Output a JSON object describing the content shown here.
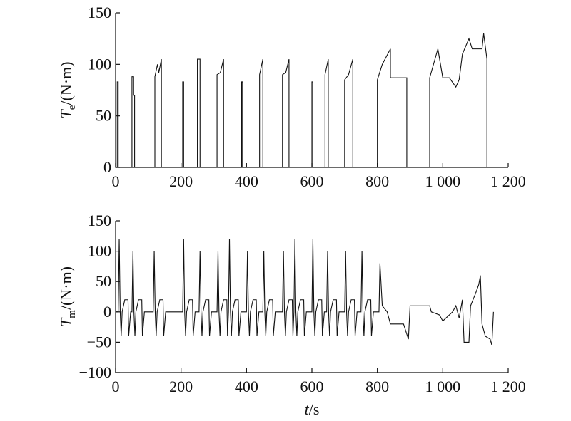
{
  "chart_data": [
    {
      "type": "line",
      "ylabel": {
        "symbol": "T",
        "subscript": "e",
        "unit": "/(N·m)"
      },
      "xlim": [
        0,
        1200
      ],
      "xticks": [
        0,
        200,
        400,
        600,
        800,
        {
          "value": 1000,
          "label": "1 000"
        },
        {
          "value": 1200,
          "label": "1 200"
        }
      ],
      "ylim": [
        0,
        150
      ],
      "yticks": [
        0,
        50,
        100,
        150
      ],
      "series": [
        {
          "color": "#111111",
          "x": [
            0,
            5,
            5,
            8,
            8,
            50,
            50,
            55,
            55,
            58,
            58,
            120,
            120,
            128,
            132,
            140,
            140,
            205,
            205,
            208,
            208,
            250,
            250,
            258,
            258,
            310,
            310,
            320,
            330,
            330,
            385,
            385,
            388,
            388,
            440,
            440,
            450,
            450,
            510,
            510,
            520,
            530,
            530,
            600,
            600,
            603,
            603,
            640,
            640,
            650,
            650,
            700,
            700,
            712,
            725,
            725,
            800,
            800,
            815,
            840,
            840,
            890,
            890,
            960,
            960,
            985,
            1000,
            1020,
            1040,
            1050,
            1060,
            1080,
            1090,
            1120,
            1125,
            1135,
            1135,
            1200
          ],
          "values": [
            0,
            0,
            83,
            83,
            0,
            0,
            88,
            88,
            70,
            70,
            0,
            0,
            88,
            100,
            92,
            105,
            0,
            0,
            83,
            83,
            0,
            0,
            105,
            105,
            0,
            0,
            90,
            92,
            105,
            0,
            0,
            83,
            83,
            0,
            0,
            90,
            105,
            0,
            0,
            90,
            92,
            105,
            0,
            0,
            83,
            83,
            0,
            0,
            90,
            105,
            0,
            0,
            85,
            90,
            105,
            0,
            0,
            85,
            100,
            115,
            87,
            87,
            0,
            0,
            87,
            115,
            87,
            87,
            78,
            85,
            110,
            125,
            115,
            115,
            130,
            105,
            0,
            0
          ]
        }
      ]
    },
    {
      "type": "line",
      "ylabel": {
        "symbol": "T",
        "subscript": "m",
        "unit": "/(N·m)"
      },
      "xlabel": {
        "symbol": "t",
        "unit": "/s"
      },
      "xlim": [
        0,
        1200
      ],
      "xticks": [
        0,
        200,
        400,
        600,
        800,
        {
          "value": 1000,
          "label": "1 000"
        },
        {
          "value": 1200,
          "label": "1 200"
        }
      ],
      "ylim": [
        -100,
        150
      ],
      "yticks": [
        {
          "value": -100,
          "label": "−100"
        },
        {
          "value": -50,
          "label": "−50"
        },
        0,
        50,
        100,
        150
      ],
      "series": [
        {
          "color": "#111111",
          "x": [
            0,
            8,
            11,
            14,
            17,
            20,
            28,
            38,
            40,
            46,
            50,
            53,
            56,
            59,
            62,
            70,
            80,
            82,
            88,
            115,
            118,
            121,
            124,
            127,
            135,
            145,
            147,
            153,
            205,
            208,
            211,
            214,
            217,
            225,
            235,
            237,
            243,
            255,
            258,
            261,
            264,
            267,
            275,
            285,
            287,
            293,
            310,
            313,
            316,
            319,
            322,
            330,
            340,
            342,
            345,
            348,
            351,
            354,
            357,
            365,
            375,
            377,
            383,
            400,
            403,
            406,
            409,
            412,
            420,
            430,
            432,
            438,
            450,
            453,
            456,
            459,
            462,
            470,
            480,
            482,
            488,
            510,
            513,
            516,
            519,
            522,
            530,
            540,
            542,
            545,
            548,
            551,
            554,
            557,
            565,
            575,
            577,
            583,
            600,
            603,
            606,
            609,
            612,
            620,
            630,
            632,
            638,
            645,
            648,
            651,
            654,
            657,
            665,
            675,
            677,
            683,
            700,
            703,
            706,
            709,
            712,
            720,
            730,
            732,
            738,
            750,
            753,
            756,
            759,
            762,
            770,
            780,
            782,
            788,
            805,
            808,
            815,
            830,
            840,
            880,
            895,
            900,
            960,
            965,
            990,
            1000,
            1010,
            1030,
            1040,
            1050,
            1060,
            1065,
            1080,
            1085,
            1100,
            1110,
            1115,
            1120,
            1130,
            1145,
            1150,
            1155
          ],
          "values": [
            0,
            0,
            120,
            0,
            -40,
            0,
            20,
            20,
            -40,
            0,
            0,
            100,
            0,
            -40,
            0,
            20,
            20,
            -40,
            0,
            0,
            100,
            0,
            -40,
            0,
            20,
            20,
            -40,
            0,
            0,
            120,
            0,
            -40,
            0,
            20,
            20,
            -40,
            0,
            0,
            100,
            0,
            -40,
            0,
            20,
            20,
            -40,
            0,
            0,
            100,
            0,
            -40,
            0,
            20,
            20,
            -40,
            0,
            120,
            0,
            -40,
            0,
            20,
            20,
            -40,
            0,
            0,
            100,
            0,
            -40,
            0,
            20,
            20,
            -40,
            0,
            0,
            100,
            0,
            -40,
            0,
            20,
            20,
            -40,
            0,
            0,
            100,
            0,
            -40,
            0,
            20,
            20,
            -40,
            0,
            120,
            0,
            -40,
            0,
            20,
            20,
            -40,
            0,
            0,
            120,
            0,
            -40,
            0,
            20,
            20,
            -40,
            0,
            0,
            100,
            0,
            -40,
            0,
            20,
            20,
            -40,
            0,
            0,
            100,
            0,
            -40,
            0,
            20,
            20,
            -40,
            0,
            0,
            100,
            0,
            -40,
            0,
            20,
            20,
            -40,
            0,
            0,
            80,
            10,
            0,
            -20,
            -20,
            -45,
            10,
            10,
            0,
            -5,
            -15,
            -10,
            0,
            10,
            -10,
            20,
            -50,
            -50,
            10,
            30,
            45,
            60,
            -20,
            -40,
            -45,
            -55,
            0
          ]
        }
      ]
    }
  ]
}
